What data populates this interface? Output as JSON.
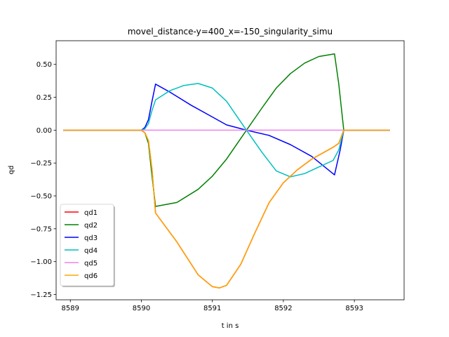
{
  "chart_data": {
    "type": "line",
    "title": "movel_distance-y=400_x=-150_singularity_simu",
    "xlabel": "t in s",
    "ylabel": "qd",
    "xlim": [
      8588.8,
      8593.7
    ],
    "ylim": [
      -1.29,
      0.68
    ],
    "xticks": [
      8589,
      8590,
      8591,
      8592,
      8593
    ],
    "yticks": [
      0.5,
      0.25,
      0.0,
      -0.25,
      -0.5,
      -0.75,
      -1.0,
      -1.25
    ],
    "ytick_labels": [
      "0.50",
      "0.25",
      "0.00",
      "−0.25",
      "−0.50",
      "−0.75",
      "−1.00",
      "−1.25"
    ],
    "grid": false,
    "legend_position": "lower-left",
    "series": [
      {
        "name": "qd1",
        "color": "#ff0000",
        "x": [
          8588.9,
          8590.0,
          8590.05,
          8590.1,
          8590.15,
          8590.2,
          8590.5,
          8590.8,
          8591.0,
          8591.1,
          8591.2,
          8591.4,
          8591.6,
          8591.8,
          8592.0,
          8592.2,
          8592.4,
          8592.6,
          8592.7,
          8592.78,
          8592.85,
          8593.5
        ],
        "y": [
          0.0,
          0.0,
          -0.02,
          -0.08,
          -0.3,
          -0.63,
          -0.85,
          -1.1,
          -1.19,
          -1.2,
          -1.18,
          -1.02,
          -0.78,
          -0.55,
          -0.4,
          -0.3,
          -0.22,
          -0.16,
          -0.13,
          -0.1,
          0.0,
          0.0
        ]
      },
      {
        "name": "qd2",
        "color": "#008000",
        "x": [
          8588.9,
          8590.0,
          8590.05,
          8590.1,
          8590.15,
          8590.2,
          8590.5,
          8590.8,
          8591.0,
          8591.2,
          8591.48,
          8591.7,
          8591.9,
          8592.1,
          8592.3,
          8592.5,
          8592.72,
          8592.78,
          8592.85,
          8593.5
        ],
        "y": [
          0.0,
          0.0,
          -0.02,
          -0.1,
          -0.35,
          -0.58,
          -0.55,
          -0.45,
          -0.35,
          -0.22,
          0.0,
          0.17,
          0.32,
          0.43,
          0.51,
          0.56,
          0.58,
          0.35,
          0.0,
          0.0
        ]
      },
      {
        "name": "qd3",
        "color": "#0000ff",
        "x": [
          8588.9,
          8590.0,
          8590.05,
          8590.1,
          8590.15,
          8590.2,
          8590.4,
          8590.7,
          8591.0,
          8591.2,
          8591.48,
          8591.8,
          8592.1,
          8592.4,
          8592.72,
          8592.8,
          8592.85,
          8593.5
        ],
        "y": [
          0.0,
          0.0,
          0.02,
          0.08,
          0.22,
          0.35,
          0.29,
          0.19,
          0.1,
          0.04,
          0.0,
          -0.04,
          -0.11,
          -0.2,
          -0.34,
          -0.15,
          0.0,
          0.0
        ]
      },
      {
        "name": "qd4",
        "color": "#00bfbf",
        "x": [
          8588.9,
          8590.0,
          8590.05,
          8590.1,
          8590.15,
          8590.2,
          8590.4,
          8590.6,
          8590.8,
          8591.0,
          8591.2,
          8591.48,
          8591.7,
          8591.9,
          8592.1,
          8592.3,
          8592.5,
          8592.7,
          8592.78,
          8592.85,
          8593.5
        ],
        "y": [
          0.0,
          0.0,
          0.01,
          0.05,
          0.15,
          0.23,
          0.3,
          0.34,
          0.355,
          0.32,
          0.22,
          0.0,
          -0.17,
          -0.31,
          -0.355,
          -0.33,
          -0.28,
          -0.23,
          -0.15,
          0.0,
          0.0
        ]
      },
      {
        "name": "qd5",
        "color": "#ee82ee",
        "x": [
          8588.9,
          8593.5
        ],
        "y": [
          0.0,
          0.0
        ]
      },
      {
        "name": "qd6",
        "color": "#ffa500",
        "x": [
          8588.9,
          8590.0,
          8590.05,
          8590.1,
          8590.15,
          8590.2,
          8590.5,
          8590.8,
          8591.0,
          8591.1,
          8591.2,
          8591.4,
          8591.6,
          8591.8,
          8592.0,
          8592.2,
          8592.4,
          8592.6,
          8592.7,
          8592.78,
          8592.85,
          8593.5
        ],
        "y": [
          0.0,
          0.0,
          -0.02,
          -0.08,
          -0.3,
          -0.63,
          -0.85,
          -1.1,
          -1.19,
          -1.2,
          -1.18,
          -1.02,
          -0.78,
          -0.55,
          -0.4,
          -0.3,
          -0.22,
          -0.16,
          -0.13,
          -0.1,
          0.0,
          0.0
        ]
      }
    ]
  }
}
